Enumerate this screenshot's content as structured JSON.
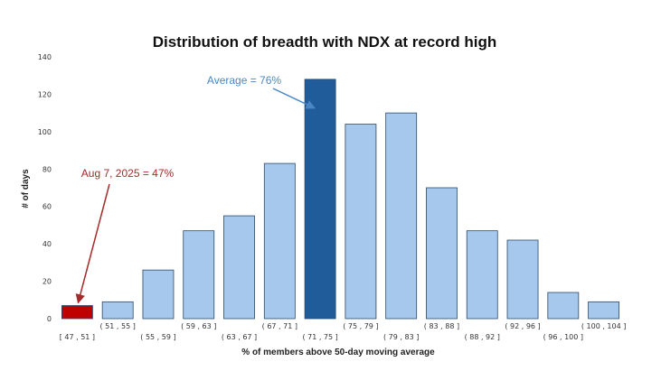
{
  "chart_data": {
    "type": "bar",
    "title": "Distribution of breadth with NDX at record high",
    "xlabel": "% of members above 50-day moving average",
    "ylabel": "# of days",
    "ylim": [
      0,
      140
    ],
    "yticks": [
      0,
      20,
      40,
      60,
      80,
      100,
      120,
      140
    ],
    "grid": false,
    "categories": [
      "[ 47 , 51 ]",
      "( 51 , 55 ]",
      "( 55 , 59 ]",
      "( 59 , 63 ]",
      "( 63 , 67 ]",
      "( 67 , 71 ]",
      "( 71 , 75 ]",
      "( 75 , 79 ]",
      "( 79 , 83 ]",
      "( 83 , 88 ]",
      "( 88 , 92 ]",
      "( 92 , 96 ]",
      "( 96 , 100 ]",
      "( 100 , 104 ]"
    ],
    "values": [
      7,
      9,
      26,
      47,
      55,
      83,
      128,
      104,
      110,
      70,
      47,
      42,
      14,
      9
    ],
    "colors": {
      "default": "#a6c8ec",
      "highlight_average": "#1f5c99",
      "highlight_current": "#c00000",
      "outline": "#2b4a6b"
    },
    "highlight_average_index": 6,
    "highlight_current_index": 0,
    "annotations": [
      {
        "text": "Average = 76%",
        "color": "#4a86c5",
        "target_index": 6
      },
      {
        "text": "Aug 7, 2025 = 47%",
        "color": "#a52a2a",
        "target_index": 0
      }
    ]
  }
}
